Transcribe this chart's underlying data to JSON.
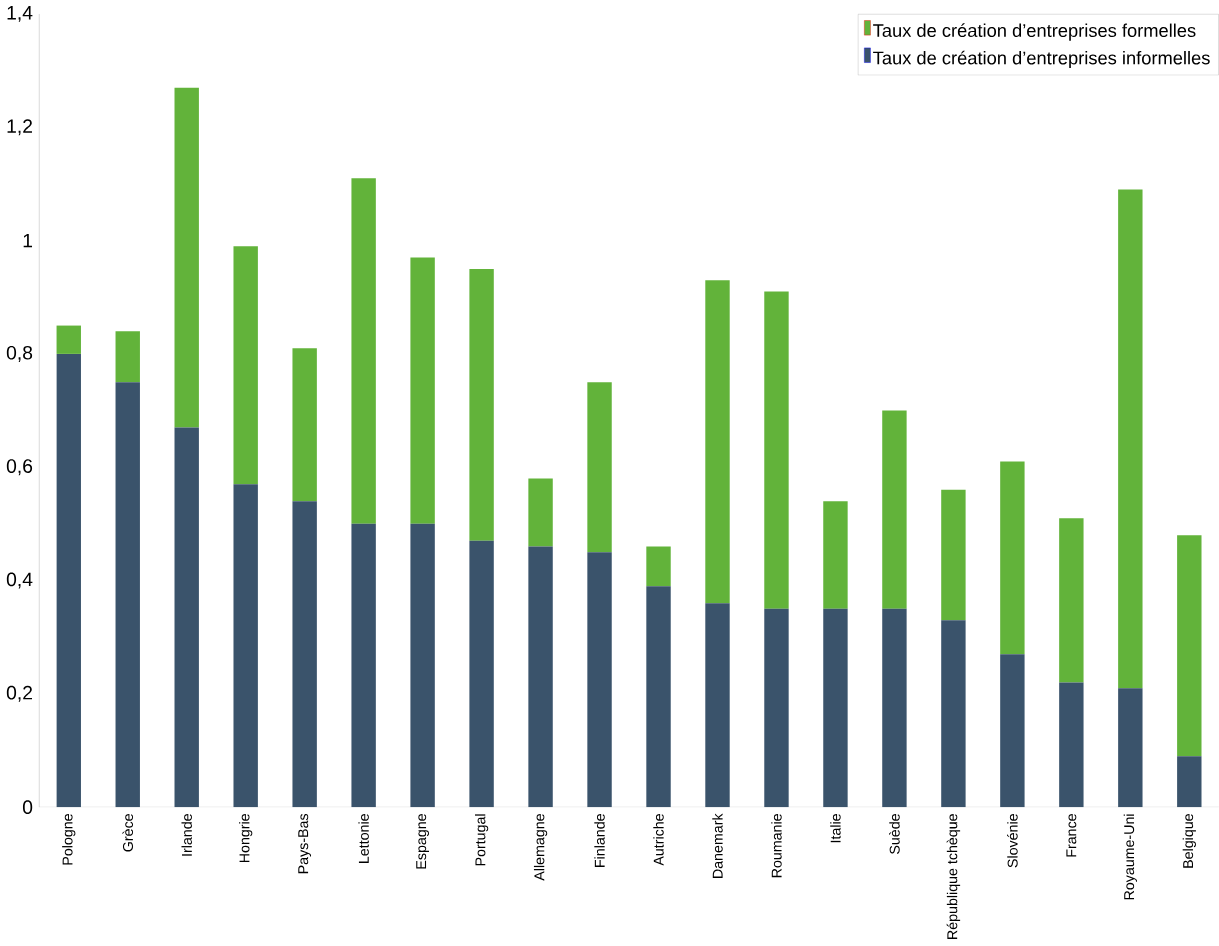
{
  "chart_data": {
    "type": "bar",
    "stacked": true,
    "categories": [
      "Pologne",
      "Grèce",
      "Irlande",
      "Hongrie",
      "Pays-Bas",
      "Lettonie",
      "Espagne",
      "Portugal",
      "Allemagne",
      "Finlande",
      "Autriche",
      "Danemark",
      "Roumanie",
      "Italie",
      "Suède",
      "République tchèque",
      "Slovénie",
      "France",
      "Royaume-Uni",
      "Belgique"
    ],
    "series": [
      {
        "name": "Taux de création d’entreprises informelles",
        "color": "#3a536b",
        "values": [
          0.8,
          0.75,
          0.67,
          0.57,
          0.54,
          0.5,
          0.5,
          0.47,
          0.46,
          0.45,
          0.39,
          0.36,
          0.35,
          0.35,
          0.35,
          0.33,
          0.27,
          0.22,
          0.21,
          0.09
        ]
      },
      {
        "name": "Taux de création d’entreprises formelles",
        "color": "#62b33a",
        "values": [
          0.05,
          0.09,
          0.6,
          0.42,
          0.27,
          0.61,
          0.47,
          0.48,
          0.12,
          0.3,
          0.07,
          0.57,
          0.56,
          0.19,
          0.35,
          0.23,
          0.34,
          0.29,
          0.88,
          0.39
        ]
      }
    ],
    "ylim": [
      0,
      1.4
    ],
    "yticks": [
      0,
      {
        "value": 0.2,
        "label": "0,2"
      },
      {
        "value": 0.4,
        "label": "0,4"
      },
      {
        "value": 0.6,
        "label": "0,6"
      },
      {
        "value": 0.8,
        "label": "0,8"
      },
      1,
      {
        "value": 1.2,
        "label": "1,2"
      },
      {
        "value": 1.4,
        "label": "1,4"
      }
    ],
    "legend": "top right",
    "grid": false
  }
}
